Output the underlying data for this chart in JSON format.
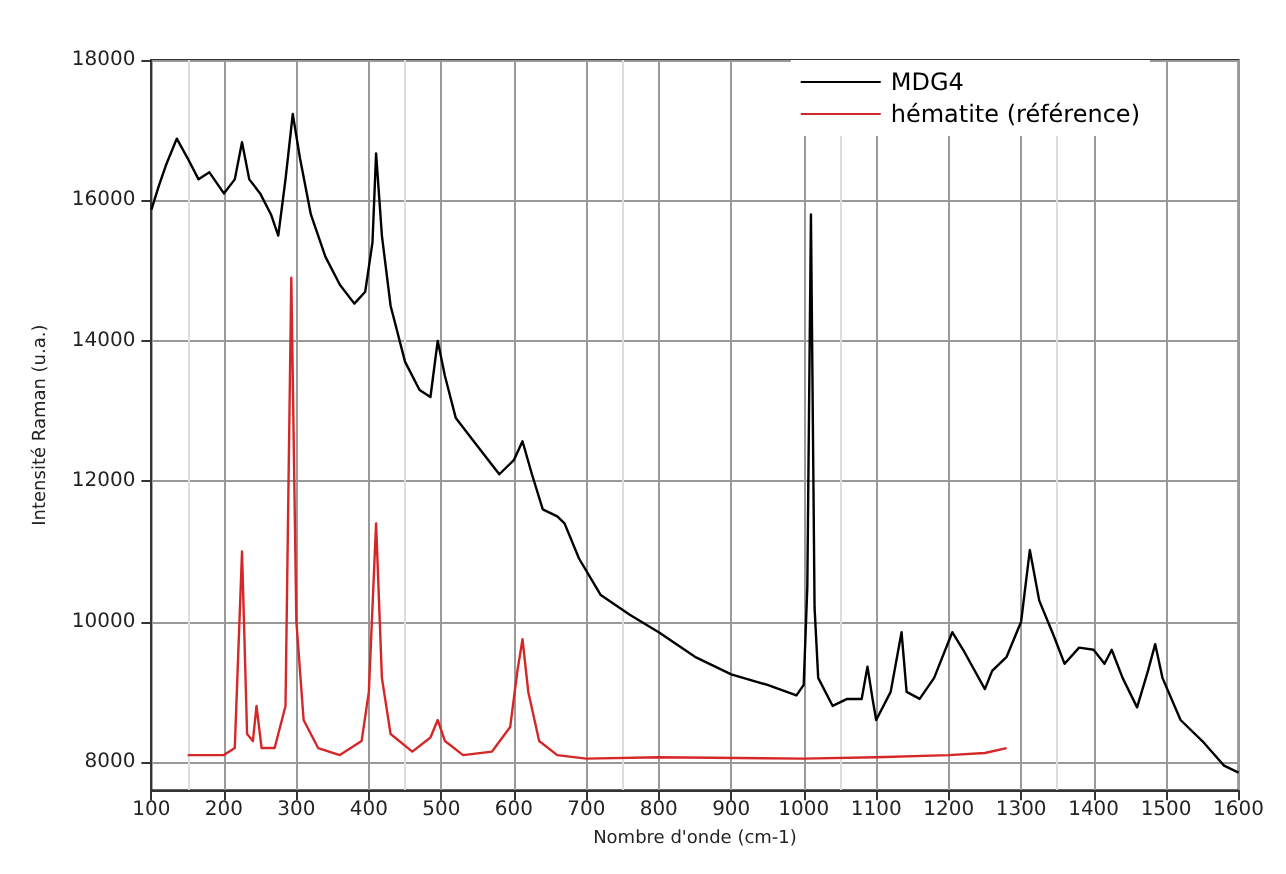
{
  "chart_data": {
    "type": "line",
    "xlabel": "Nombre d'onde (cm-1)",
    "ylabel": "Intensité Raman (u.a.)",
    "xlim": [
      100,
      1600
    ],
    "xticks": [
      100,
      200,
      300,
      400,
      500,
      600,
      700,
      800,
      900,
      1000,
      1100,
      1200,
      1300,
      1400,
      1500,
      1600
    ],
    "ylim": [
      7600,
      18000
    ],
    "yticks": [
      8000,
      10000,
      12000,
      14000,
      16000,
      18000
    ],
    "grid": true,
    "legend": "top right",
    "marker": "none",
    "line_style": "solid",
    "series": [
      {
        "name": "MDG4",
        "color": "#000000",
        "x": [
          100,
          110,
          120,
          135,
          150,
          165,
          180,
          200,
          215,
          225,
          235,
          250,
          265,
          275,
          285,
          295,
          305,
          320,
          340,
          360,
          380,
          395,
          405,
          410,
          418,
          430,
          450,
          470,
          485,
          495,
          505,
          520,
          550,
          580,
          600,
          612,
          625,
          640,
          660,
          670,
          690,
          720,
          760,
          800,
          850,
          900,
          950,
          990,
          1000,
          1005,
          1010,
          1015,
          1020,
          1040,
          1060,
          1080,
          1088,
          1095,
          1100,
          1120,
          1135,
          1142,
          1160,
          1180,
          1205,
          1220,
          1250,
          1260,
          1280,
          1300,
          1312,
          1325,
          1345,
          1360,
          1380,
          1400,
          1415,
          1425,
          1440,
          1460,
          1475,
          1485,
          1495,
          1520,
          1550,
          1580,
          1600
        ],
        "values": [
          15870,
          16200,
          16500,
          16880,
          16600,
          16300,
          16400,
          16100,
          16300,
          16830,
          16300,
          16100,
          15800,
          15500,
          16300,
          17230,
          16600,
          15800,
          15200,
          14800,
          14530,
          14700,
          15400,
          16670,
          15500,
          14500,
          13700,
          13300,
          13200,
          14000,
          13500,
          12900,
          12500,
          12100,
          12300,
          12570,
          12100,
          11600,
          11500,
          11400,
          10900,
          10380,
          10100,
          9850,
          9500,
          9250,
          9100,
          8950,
          9100,
          10500,
          15800,
          10200,
          9200,
          8800,
          8900,
          8900,
          9360,
          8900,
          8600,
          9000,
          9850,
          9000,
          8900,
          9200,
          9850,
          9600,
          9040,
          9300,
          9500,
          10000,
          11020,
          10300,
          9800,
          9400,
          9630,
          9600,
          9400,
          9600,
          9200,
          8780,
          9300,
          9680,
          9200,
          8600,
          8300,
          7950,
          7850
        ]
      },
      {
        "name": "hématite (référence)",
        "color": "#d62728",
        "x": [
          150,
          200,
          215,
          225,
          232,
          240,
          245,
          252,
          270,
          285,
          293,
          300,
          310,
          330,
          360,
          390,
          400,
          410,
          418,
          430,
          460,
          485,
          495,
          505,
          530,
          570,
          595,
          605,
          612,
          620,
          635,
          660,
          700,
          800,
          1000,
          1100,
          1200,
          1250,
          1280
        ],
        "values": [
          8100,
          8100,
          8200,
          11000,
          8400,
          8300,
          8800,
          8200,
          8200,
          8800,
          14900,
          10000,
          8600,
          8200,
          8100,
          8300,
          9000,
          11400,
          9200,
          8400,
          8150,
          8350,
          8600,
          8300,
          8100,
          8150,
          8500,
          9300,
          9750,
          9000,
          8300,
          8100,
          8050,
          8070,
          8050,
          8070,
          8100,
          8130,
          8200
        ]
      }
    ]
  }
}
